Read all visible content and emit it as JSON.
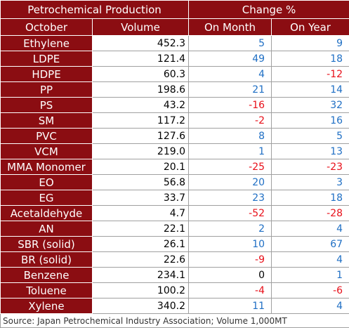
{
  "header": {
    "title": "Petrochemical Production",
    "change_title": "Change %",
    "col_month": "October",
    "col_volume": "Volume",
    "col_on_month": "On Month",
    "col_on_year": "On Year"
  },
  "rows": [
    {
      "name": "Ethylene",
      "volume": "452.3",
      "on_month": "5",
      "on_year": "9"
    },
    {
      "name": "LDPE",
      "volume": "121.4",
      "on_month": "49",
      "on_year": "18"
    },
    {
      "name": "HDPE",
      "volume": "60.3",
      "on_month": "4",
      "on_year": "-12"
    },
    {
      "name": "PP",
      "volume": "198.6",
      "on_month": "21",
      "on_year": "14"
    },
    {
      "name": "PS",
      "volume": "43.2",
      "on_month": "-16",
      "on_year": "32"
    },
    {
      "name": "SM",
      "volume": "117.2",
      "on_month": "-2",
      "on_year": "16"
    },
    {
      "name": "PVC",
      "volume": "127.6",
      "on_month": "8",
      "on_year": "5"
    },
    {
      "name": "VCM",
      "volume": "219.0",
      "on_month": "1",
      "on_year": "13"
    },
    {
      "name": "MMA Monomer",
      "volume": "20.1",
      "on_month": "-25",
      "on_year": "-23"
    },
    {
      "name": "EO",
      "volume": "56.8",
      "on_month": "20",
      "on_year": "3"
    },
    {
      "name": "EG",
      "volume": "33.7",
      "on_month": "23",
      "on_year": "18"
    },
    {
      "name": "Acetaldehyde",
      "volume": "4.7",
      "on_month": "-52",
      "on_year": "-28"
    },
    {
      "name": "AN",
      "volume": "22.1",
      "on_month": "2",
      "on_year": "4"
    },
    {
      "name": "SBR (solid)",
      "volume": "26.1",
      "on_month": "10",
      "on_year": "67"
    },
    {
      "name": "BR (solid)",
      "volume": "22.6",
      "on_month": "-9",
      "on_year": "4"
    },
    {
      "name": "Benzene",
      "volume": "234.1",
      "on_month": "0",
      "on_year": "1"
    },
    {
      "name": "Toluene",
      "volume": "100.2",
      "on_month": "-4",
      "on_year": "-6"
    },
    {
      "name": "Xylene",
      "volume": "340.2",
      "on_month": "11",
      "on_year": "4"
    }
  ],
  "source": "Source: Japan Petrochemical Industry Association; Volume 1,000MT",
  "colors": {
    "header_bg": "#8b0d12",
    "positive": "#1f6fc4",
    "negative": "#e8101a"
  }
}
